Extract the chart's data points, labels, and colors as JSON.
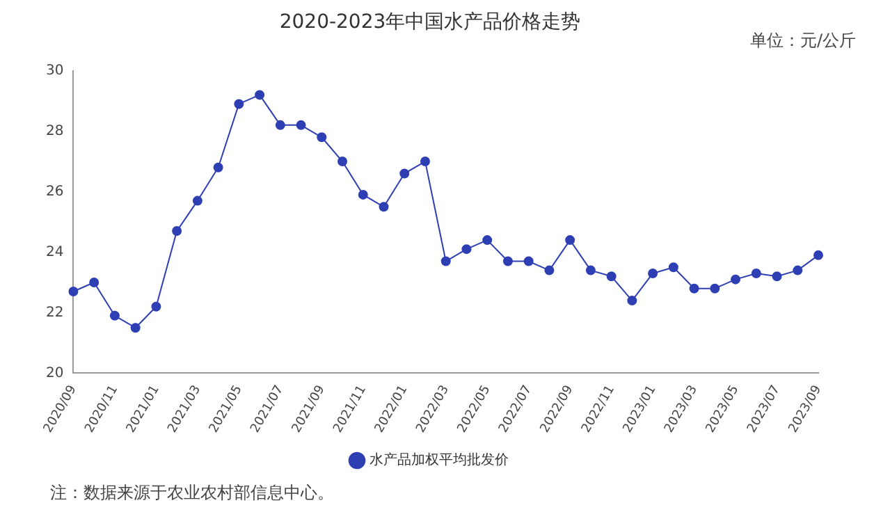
{
  "chart_data": {
    "type": "line",
    "title": "2020-2023年中国水产品价格走势",
    "categories": [
      "2020/09",
      null,
      "2020/11",
      null,
      "2021/01",
      null,
      "2021/03",
      null,
      "2021/05",
      null,
      "2021/07",
      null,
      "2021/09",
      null,
      "2021/11",
      null,
      "2022/01",
      null,
      "2022/03",
      null,
      "2022/05",
      null,
      "2022/07",
      null,
      "2022/09",
      null,
      "2022/11",
      null,
      "2023/01",
      null,
      "2023/03",
      null,
      "2023/05",
      null,
      "2023/07",
      null,
      "2023/09"
    ],
    "series": [
      {
        "name": "水产品加权平均批发价",
        "color": "#2e3fb4",
        "values": [
          22.7,
          23.0,
          21.9,
          21.5,
          22.2,
          24.7,
          25.7,
          26.8,
          28.9,
          29.2,
          28.2,
          28.2,
          27.8,
          27.0,
          25.9,
          25.5,
          26.6,
          27.0,
          23.7,
          24.1,
          24.4,
          23.7,
          23.7,
          23.4,
          24.4,
          23.4,
          23.2,
          22.4,
          23.3,
          23.5,
          22.8,
          22.8,
          23.1,
          23.3,
          23.2,
          23.4,
          23.9
        ]
      }
    ],
    "ylim": [
      20,
      30
    ],
    "yticks": [
      20,
      22,
      24,
      26,
      28,
      30
    ],
    "grid": false,
    "legend": "bottom",
    "marker": "circle",
    "line_style": "solid",
    "annotations": [
      "单位：元/公斤",
      "注：数据来源于农业农村部信息中心。"
    ]
  }
}
